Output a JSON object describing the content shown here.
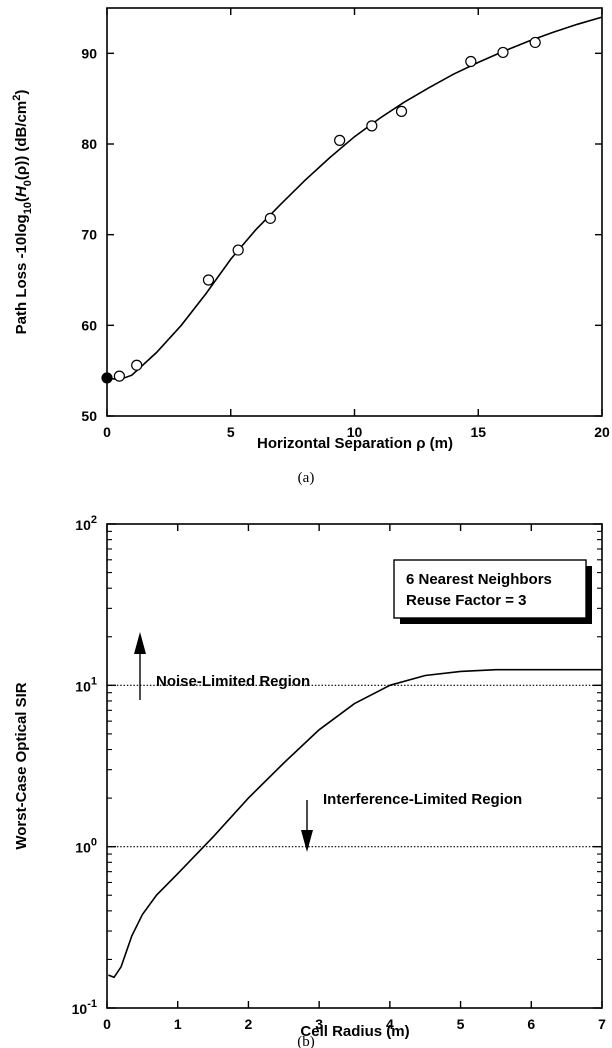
{
  "chart_data": [
    {
      "type": "scatter",
      "xlabel": "Horizontal Separation ρ (m)",
      "ylabel": "Path Loss -10log10(H0(ρ)) (dB/cm2)",
      "xlim": [
        0,
        20
      ],
      "ylim": [
        50,
        95
      ],
      "x_ticks": [
        0,
        5,
        10,
        15,
        20
      ],
      "y_ticks": [
        50,
        60,
        70,
        80,
        90
      ],
      "x_tick_labels": [
        "0",
        "5",
        "10",
        "15",
        "20"
      ],
      "y_tick_labels": [
        "50",
        "60",
        "70",
        "80",
        "90"
      ],
      "caption": "(a)",
      "series": [
        {
          "marker": "filled-circle",
          "points": [
            [
              0,
              54.2
            ]
          ]
        },
        {
          "marker": "open-circle",
          "points": [
            [
              0.5,
              54.4
            ],
            [
              1.2,
              55.6
            ],
            [
              4.1,
              65.0
            ],
            [
              5.3,
              68.3
            ],
            [
              6.6,
              71.8
            ],
            [
              9.4,
              80.4
            ],
            [
              10.7,
              82.0
            ],
            [
              11.9,
              83.6
            ],
            [
              14.7,
              89.1
            ],
            [
              16.0,
              90.1
            ],
            [
              17.3,
              91.2
            ]
          ]
        },
        {
          "marker": "line",
          "points": [
            [
              0,
              54.2
            ],
            [
              0.5,
              54.0
            ],
            [
              1.0,
              54.5
            ],
            [
              2.0,
              57.0
            ],
            [
              3.0,
              60.0
            ],
            [
              4.0,
              63.5
            ],
            [
              5.0,
              67.3
            ],
            [
              6.0,
              70.5
            ],
            [
              7.0,
              73.3
            ],
            [
              8.0,
              76.0
            ],
            [
              9.0,
              78.5
            ],
            [
              10.0,
              80.8
            ],
            [
              11.0,
              82.8
            ],
            [
              12.0,
              84.6
            ],
            [
              13.0,
              86.2
            ],
            [
              14.0,
              87.7
            ],
            [
              15.0,
              89.0
            ],
            [
              16.0,
              90.2
            ],
            [
              17.0,
              91.3
            ],
            [
              18.0,
              92.3
            ],
            [
              19.0,
              93.2
            ],
            [
              20.0,
              94.0
            ]
          ]
        }
      ]
    },
    {
      "type": "line",
      "xlabel": "Cell Radius (m)",
      "ylabel": "Worst-Case Optical SIR",
      "xlim": [
        0,
        7
      ],
      "ylim": [
        0.1,
        100
      ],
      "y_scale": "log",
      "x_ticks": [
        0,
        1,
        2,
        3,
        4,
        5,
        6,
        7
      ],
      "x_tick_labels": [
        "0",
        "1",
        "2",
        "3",
        "4",
        "5",
        "6",
        "7"
      ],
      "y_ticks": [
        0.1,
        1,
        10,
        100
      ],
      "y_tick_base": "10",
      "y_tick_exponents": [
        "-1",
        "0",
        "1",
        "2"
      ],
      "caption": "(b)",
      "legend_lines": [
        "6 Nearest Neighbors",
        "Reuse Factor = 3"
      ],
      "legend_position": "top-right",
      "annotations": {
        "noise_region": "Noise-Limited Region",
        "interference_region": "Interference-Limited Region"
      },
      "reference_lines": [
        10,
        1
      ],
      "series": [
        {
          "points": [
            [
              0.02,
              0.16
            ],
            [
              0.1,
              0.155
            ],
            [
              0.2,
              0.18
            ],
            [
              0.35,
              0.28
            ],
            [
              0.5,
              0.38
            ],
            [
              0.7,
              0.5
            ],
            [
              1.0,
              0.68
            ],
            [
              1.2,
              0.84
            ],
            [
              1.5,
              1.15
            ],
            [
              2.0,
              2.0
            ],
            [
              2.5,
              3.3
            ],
            [
              3.0,
              5.3
            ],
            [
              3.5,
              7.7
            ],
            [
              4.0,
              10.0
            ],
            [
              4.5,
              11.5
            ],
            [
              5.0,
              12.2
            ],
            [
              5.5,
              12.5
            ],
            [
              6.0,
              12.5
            ],
            [
              7.0,
              12.5
            ]
          ]
        }
      ]
    }
  ]
}
